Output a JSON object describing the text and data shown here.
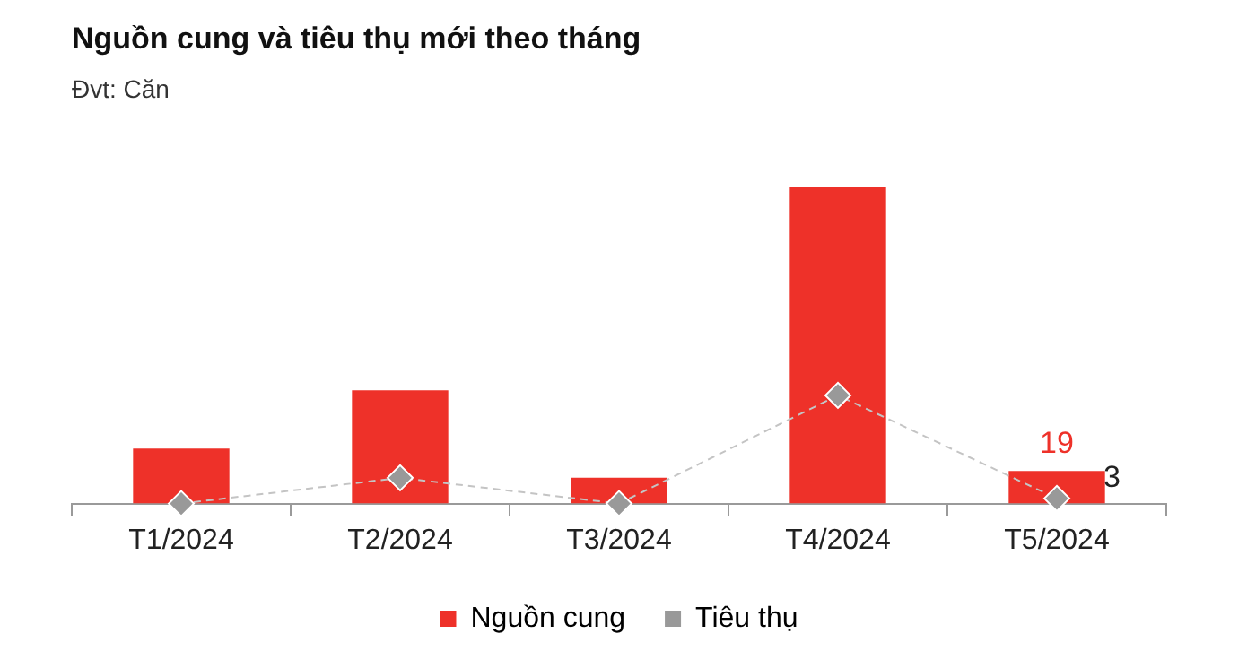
{
  "chart_data": {
    "type": "bar",
    "title": "Nguồn cung và tiêu thụ mới theo tháng",
    "subtitle": "Đvt: Căn",
    "categories": [
      "T1/2024",
      "T2/2024",
      "T3/2024",
      "T4/2024",
      "T5/2024"
    ],
    "series": [
      {
        "name": "Nguồn cung",
        "color": "#ee3129",
        "values": [
          32,
          66,
          15,
          184,
          19
        ],
        "value_labels": [
          null,
          null,
          null,
          null,
          "19"
        ]
      },
      {
        "name": "Tiêu thụ",
        "type": "line",
        "color": "#999999",
        "values": [
          0,
          15,
          0,
          63,
          3
        ],
        "value_labels": [
          null,
          null,
          null,
          null,
          "3"
        ],
        "marker": "diamond",
        "line_style": "dashed"
      }
    ],
    "tick_labels": "x",
    "legend": "bottom"
  }
}
